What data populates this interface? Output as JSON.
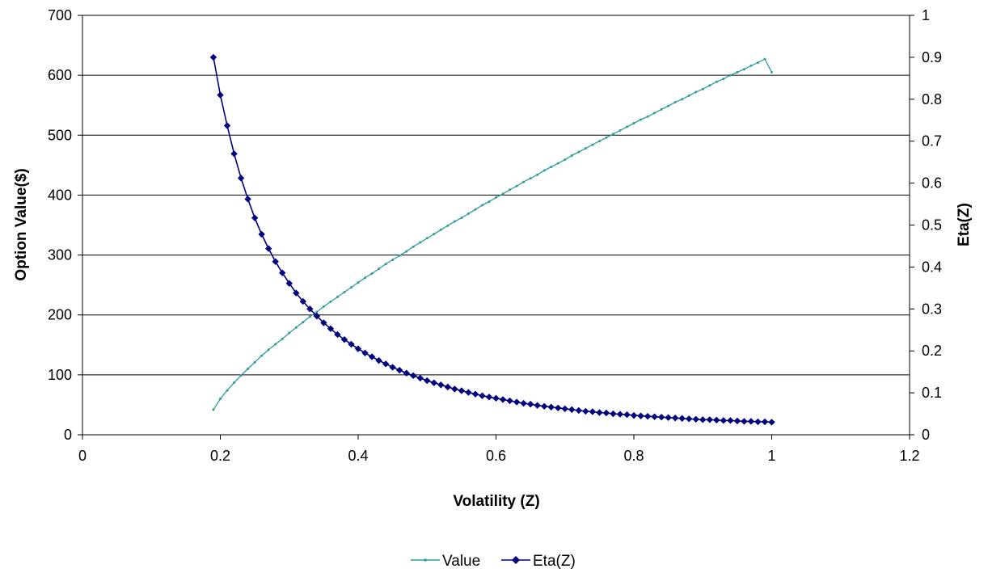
{
  "colors": {
    "value_series": "#2E9C9C",
    "eta_series": "#000080",
    "axis": "#000000",
    "grid": "#000000",
    "background": "#ffffff"
  },
  "legend": {
    "placement": "bottom-center",
    "value_label": "Value",
    "eta_label": "Eta(Z)"
  },
  "chart_data": {
    "type": "line",
    "title": "",
    "xlabel": "Volatility (Z)",
    "ylabel": "Option Value($)",
    "y2label": "Eta(Z)",
    "xlim": [
      0,
      1.2
    ],
    "ylim": [
      0,
      700
    ],
    "y2lim": [
      0,
      1
    ],
    "x_ticks": [
      "0",
      "0.2",
      "0.4",
      "0.6",
      "0.8",
      "1",
      "1.2"
    ],
    "y_ticks": [
      "0",
      "100",
      "200",
      "300",
      "400",
      "500",
      "600",
      "700"
    ],
    "y2_ticks": [
      "0",
      "0.1",
      "0.2",
      "0.3",
      "0.4",
      "0.5",
      "0.6",
      "0.7",
      "0.8",
      "0.9",
      "1"
    ],
    "grid": "horizontal major on primary axis",
    "series": [
      {
        "name": "Value",
        "axis": "left",
        "marker": "dot",
        "x": [
          0.19,
          0.2,
          0.21,
          0.22,
          0.23,
          0.24,
          0.25,
          0.26,
          0.27,
          0.28,
          0.29,
          0.3,
          0.31,
          0.32,
          0.33,
          0.34,
          0.35,
          0.36,
          0.37,
          0.38,
          0.39,
          0.4,
          0.41,
          0.42,
          0.43,
          0.44,
          0.45,
          0.46,
          0.47,
          0.48,
          0.49,
          0.5,
          0.51,
          0.52,
          0.53,
          0.54,
          0.55,
          0.56,
          0.57,
          0.58,
          0.59,
          0.6,
          0.61,
          0.62,
          0.63,
          0.64,
          0.65,
          0.66,
          0.67,
          0.68,
          0.69,
          0.7,
          0.71,
          0.72,
          0.73,
          0.74,
          0.75,
          0.76,
          0.77,
          0.78,
          0.79,
          0.8,
          0.81,
          0.82,
          0.83,
          0.84,
          0.85,
          0.86,
          0.87,
          0.88,
          0.89,
          0.9,
          0.91,
          0.92,
          0.93,
          0.94,
          0.95,
          0.96,
          0.97,
          0.98,
          0.99,
          1.0
        ],
        "values": [
          42,
          60,
          74,
          87,
          99,
          110,
          121,
          132,
          142,
          151,
          160,
          170,
          179,
          188,
          197,
          205,
          214,
          222,
          230,
          238,
          246,
          254,
          262,
          269,
          277,
          285,
          292,
          299,
          306,
          314,
          321,
          328,
          335,
          342,
          349,
          356,
          362,
          369,
          376,
          383,
          389,
          396,
          402,
          409,
          415,
          422,
          428,
          434,
          441,
          447,
          453,
          459,
          466,
          472,
          478,
          484,
          490,
          496,
          502,
          508,
          514,
          520,
          526,
          531,
          537,
          543,
          549,
          555,
          560,
          566,
          572,
          577,
          583,
          589,
          594,
          600,
          605,
          610,
          616,
          621,
          627,
          605
        ]
      },
      {
        "name": "Eta(Z)",
        "axis": "right",
        "marker": "diamond",
        "x": [
          0.19,
          0.2,
          0.21,
          0.22,
          0.23,
          0.24,
          0.25,
          0.26,
          0.27,
          0.28,
          0.29,
          0.3,
          0.31,
          0.32,
          0.33,
          0.34,
          0.35,
          0.36,
          0.37,
          0.38,
          0.39,
          0.4,
          0.41,
          0.42,
          0.43,
          0.44,
          0.45,
          0.46,
          0.47,
          0.48,
          0.49,
          0.5,
          0.51,
          0.52,
          0.53,
          0.54,
          0.55,
          0.56,
          0.57,
          0.58,
          0.59,
          0.6,
          0.61,
          0.62,
          0.63,
          0.64,
          0.65,
          0.66,
          0.67,
          0.68,
          0.69,
          0.7,
          0.71,
          0.72,
          0.73,
          0.74,
          0.75,
          0.76,
          0.77,
          0.78,
          0.79,
          0.8,
          0.81,
          0.82,
          0.83,
          0.84,
          0.85,
          0.86,
          0.87,
          0.88,
          0.89,
          0.9,
          0.91,
          0.92,
          0.93,
          0.94,
          0.95,
          0.96,
          0.97,
          0.98,
          0.99,
          1.0
        ],
        "values": [
          0.9,
          0.81,
          0.737,
          0.67,
          0.612,
          0.562,
          0.517,
          0.478,
          0.444,
          0.413,
          0.386,
          0.361,
          0.338,
          0.318,
          0.3,
          0.283,
          0.267,
          0.253,
          0.239,
          0.227,
          0.216,
          0.205,
          0.195,
          0.186,
          0.177,
          0.169,
          0.161,
          0.154,
          0.147,
          0.141,
          0.135,
          0.129,
          0.124,
          0.119,
          0.114,
          0.109,
          0.105,
          0.101,
          0.097,
          0.093,
          0.09,
          0.087,
          0.084,
          0.081,
          0.078,
          0.075,
          0.073,
          0.07,
          0.068,
          0.066,
          0.064,
          0.062,
          0.06,
          0.058,
          0.056,
          0.055,
          0.053,
          0.052,
          0.05,
          0.049,
          0.048,
          0.046,
          0.045,
          0.044,
          0.043,
          0.042,
          0.041,
          0.04,
          0.039,
          0.038,
          0.037,
          0.036,
          0.036,
          0.035,
          0.034,
          0.034,
          0.033,
          0.032,
          0.032,
          0.031,
          0.031,
          0.03
        ]
      }
    ]
  }
}
